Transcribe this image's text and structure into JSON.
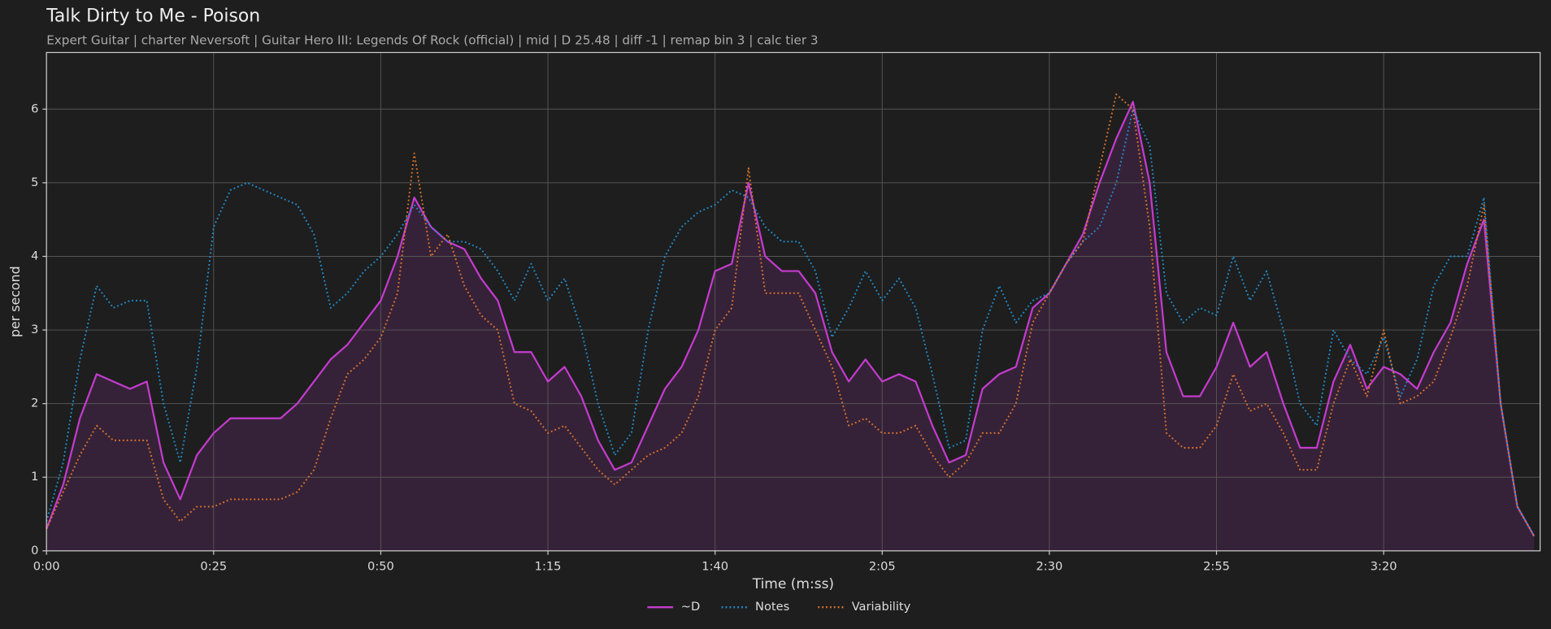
{
  "chart_data": {
    "type": "line",
    "title": "Talk Dirty to Me - Poison",
    "subtitle": "Expert Guitar  |  charter Neversoft  |  Guitar Hero III: Legends Of Rock (official)  |  mid  |  D 25.48  |  diff -1  |  remap bin 3  |  calc tier 3",
    "x_label": "Time (m:ss)",
    "y_label": "per second",
    "x": [
      0,
      2.5,
      5,
      7.5,
      10,
      12.5,
      15,
      17.5,
      20,
      22.5,
      25,
      27.5,
      30,
      32.5,
      35,
      37.5,
      40,
      42.5,
      45,
      47.5,
      50,
      52.5,
      55,
      57.5,
      60,
      62.5,
      65,
      67.5,
      70,
      72.5,
      75,
      77.5,
      80,
      82.5,
      85,
      87.5,
      90,
      92.5,
      95,
      97.5,
      100,
      102.5,
      105,
      107.5,
      110,
      112.5,
      115,
      117.5,
      120,
      122.5,
      125,
      127.5,
      130,
      132.5,
      135,
      137.5,
      140,
      142.5,
      145,
      147.5,
      150,
      152.5,
      155,
      157.5,
      160,
      162.5,
      165,
      167.5,
      170,
      172.5,
      175,
      177.5,
      180,
      182.5,
      185,
      187.5,
      190,
      192.5,
      195,
      197.5,
      200,
      202.5,
      205,
      207.5,
      210,
      212.5,
      215,
      217.5,
      220,
      222.5
    ],
    "series": [
      {
        "name": "~D",
        "color": "#c53ccf",
        "style": "solid",
        "fill": true,
        "values": [
          0.3,
          0.9,
          1.8,
          2.4,
          2.3,
          2.2,
          2.3,
          1.2,
          0.7,
          1.3,
          1.6,
          1.8,
          1.8,
          1.8,
          1.8,
          2.0,
          2.3,
          2.6,
          2.8,
          3.1,
          3.4,
          4.0,
          4.8,
          4.4,
          4.2,
          4.1,
          3.7,
          3.4,
          2.7,
          2.7,
          2.3,
          2.5,
          2.1,
          1.5,
          1.1,
          1.2,
          1.7,
          2.2,
          2.5,
          3.0,
          3.8,
          3.9,
          5.0,
          4.0,
          3.8,
          3.8,
          3.5,
          2.7,
          2.3,
          2.6,
          2.3,
          2.4,
          2.3,
          1.7,
          1.2,
          1.3,
          2.2,
          2.4,
          2.5,
          3.3,
          3.5,
          3.9,
          4.3,
          5.0,
          5.6,
          6.1,
          5.0,
          2.7,
          2.1,
          2.1,
          2.5,
          3.1,
          2.5,
          2.7,
          2.0,
          1.4,
          1.4,
          2.3,
          2.8,
          2.2,
          2.5,
          2.4,
          2.2,
          2.7,
          3.1,
          3.9,
          4.5,
          2.0,
          0.6,
          0.2
        ]
      },
      {
        "name": "Notes",
        "color": "#1f8fd0",
        "style": "dotted",
        "values": [
          0.4,
          1.2,
          2.6,
          3.6,
          3.3,
          3.4,
          3.4,
          2.0,
          1.2,
          2.5,
          4.4,
          4.9,
          5.0,
          4.9,
          4.8,
          4.7,
          4.3,
          3.3,
          3.5,
          3.8,
          4.0,
          4.3,
          4.7,
          4.4,
          4.2,
          4.2,
          4.1,
          3.8,
          3.4,
          3.9,
          3.4,
          3.7,
          3.0,
          2.0,
          1.3,
          1.6,
          3.0,
          4.0,
          4.4,
          4.6,
          4.7,
          4.9,
          4.8,
          4.4,
          4.2,
          4.2,
          3.8,
          2.9,
          3.3,
          3.8,
          3.4,
          3.7,
          3.3,
          2.4,
          1.4,
          1.5,
          3.0,
          3.6,
          3.1,
          3.4,
          3.5,
          3.9,
          4.2,
          4.4,
          5.0,
          6.0,
          5.5,
          3.5,
          3.1,
          3.3,
          3.2,
          4.0,
          3.4,
          3.8,
          3.0,
          2.0,
          1.7,
          3.0,
          2.6,
          2.4,
          2.9,
          2.1,
          2.6,
          3.6,
          4.0,
          4.0,
          4.8,
          2.0,
          0.6,
          0.2
        ]
      },
      {
        "name": "Variability",
        "color": "#e0752a",
        "style": "dotted",
        "values": [
          0.3,
          0.8,
          1.3,
          1.7,
          1.5,
          1.5,
          1.5,
          0.7,
          0.4,
          0.6,
          0.6,
          0.7,
          0.7,
          0.7,
          0.7,
          0.8,
          1.1,
          1.8,
          2.4,
          2.6,
          2.9,
          3.5,
          5.4,
          4.0,
          4.3,
          3.6,
          3.2,
          3.0,
          2.0,
          1.9,
          1.6,
          1.7,
          1.4,
          1.1,
          0.9,
          1.1,
          1.3,
          1.4,
          1.6,
          2.1,
          3.0,
          3.3,
          5.2,
          3.5,
          3.5,
          3.5,
          3.0,
          2.5,
          1.7,
          1.8,
          1.6,
          1.6,
          1.7,
          1.3,
          1.0,
          1.2,
          1.6,
          1.6,
          2.0,
          3.1,
          3.5,
          3.9,
          4.2,
          5.2,
          6.2,
          6.0,
          4.4,
          1.6,
          1.4,
          1.4,
          1.7,
          2.4,
          1.9,
          2.0,
          1.6,
          1.1,
          1.1,
          2.0,
          2.6,
          2.1,
          3.0,
          2.0,
          2.1,
          2.3,
          2.9,
          3.6,
          4.7,
          2.0,
          0.6,
          0.2
        ]
      }
    ],
    "xlim": [
      0,
      223.4
    ],
    "ylim": [
      0,
      6.77
    ],
    "xticks": [
      {
        "value": 0,
        "label": "0:00"
      },
      {
        "value": 25,
        "label": "0:25"
      },
      {
        "value": 50,
        "label": "0:50"
      },
      {
        "value": 75,
        "label": "1:15"
      },
      {
        "value": 100,
        "label": "1:40"
      },
      {
        "value": 125,
        "label": "2:05"
      },
      {
        "value": 150,
        "label": "2:30"
      },
      {
        "value": 175,
        "label": "2:55"
      },
      {
        "value": 200,
        "label": "3:20"
      }
    ],
    "yticks": [
      0,
      1,
      2,
      3,
      4,
      5,
      6
    ],
    "grid": true,
    "legend": "bottom"
  }
}
